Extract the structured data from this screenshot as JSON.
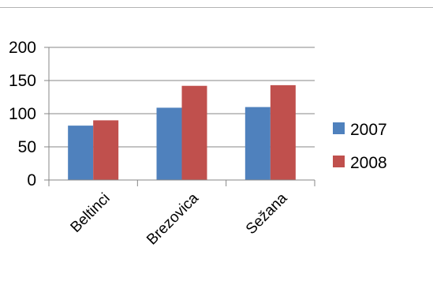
{
  "chart_data": {
    "type": "bar",
    "categories": [
      "Beltinci",
      "Brezovica",
      "Sežana"
    ],
    "series": [
      {
        "name": "2007",
        "values": [
          82,
          109,
          110
        ],
        "color": "#4f81bd"
      },
      {
        "name": "2008",
        "values": [
          90,
          142,
          143
        ],
        "color": "#c0504d"
      }
    ],
    "ylim": [
      0,
      200
    ],
    "yticks": [
      0,
      50,
      100,
      150,
      200
    ],
    "grid": true,
    "legend": "right"
  }
}
